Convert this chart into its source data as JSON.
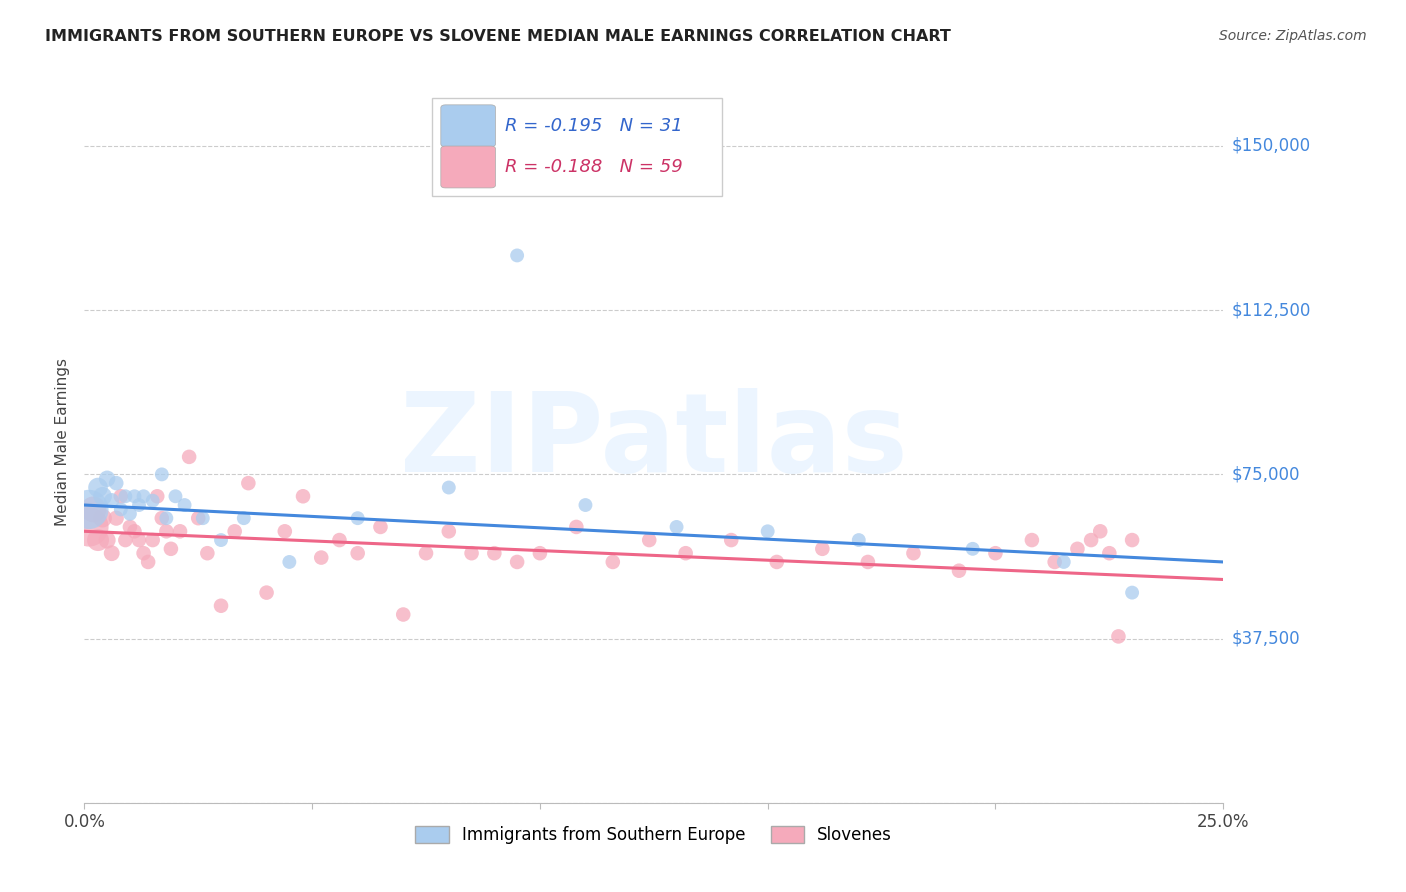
{
  "title": "IMMIGRANTS FROM SOUTHERN EUROPE VS SLOVENE MEDIAN MALE EARNINGS CORRELATION CHART",
  "source": "Source: ZipAtlas.com",
  "ylabel": "Median Male Earnings",
  "xlim": [
    0.0,
    0.25
  ],
  "ylim": [
    0,
    165000
  ],
  "yticks": [
    0,
    37500,
    75000,
    112500,
    150000
  ],
  "ytick_labels": [
    "",
    "$37,500",
    "$75,000",
    "$112,500",
    "$150,000"
  ],
  "blue_R": -0.195,
  "blue_N": 31,
  "pink_R": -0.188,
  "pink_N": 59,
  "blue_color": "#aaccee",
  "pink_color": "#f5aabb",
  "blue_line_color": "#4488dd",
  "pink_line_color": "#ee6688",
  "legend_label_blue": "Immigrants from Southern Europe",
  "legend_label_pink": "Slovenes",
  "watermark": "ZIPatlas",
  "blue_x": [
    0.001,
    0.003,
    0.004,
    0.005,
    0.006,
    0.007,
    0.008,
    0.009,
    0.01,
    0.011,
    0.012,
    0.013,
    0.015,
    0.017,
    0.018,
    0.02,
    0.022,
    0.026,
    0.03,
    0.035,
    0.045,
    0.06,
    0.08,
    0.095,
    0.11,
    0.13,
    0.15,
    0.17,
    0.195,
    0.215,
    0.23
  ],
  "blue_y": [
    67000,
    72000,
    70000,
    74000,
    69000,
    73000,
    67000,
    70000,
    66000,
    70000,
    68000,
    70000,
    69000,
    75000,
    65000,
    70000,
    68000,
    65000,
    60000,
    65000,
    55000,
    65000,
    72000,
    125000,
    68000,
    63000,
    62000,
    60000,
    58000,
    55000,
    48000
  ],
  "blue_sizes": [
    800,
    200,
    180,
    140,
    120,
    110,
    100,
    100,
    100,
    100,
    100,
    100,
    100,
    100,
    100,
    100,
    100,
    100,
    100,
    100,
    100,
    100,
    100,
    100,
    100,
    100,
    100,
    100,
    100,
    100,
    100
  ],
  "pink_x": [
    0.001,
    0.002,
    0.003,
    0.004,
    0.005,
    0.006,
    0.007,
    0.008,
    0.009,
    0.01,
    0.011,
    0.012,
    0.013,
    0.014,
    0.015,
    0.016,
    0.017,
    0.018,
    0.019,
    0.021,
    0.023,
    0.025,
    0.027,
    0.03,
    0.033,
    0.036,
    0.04,
    0.044,
    0.048,
    0.052,
    0.056,
    0.06,
    0.065,
    0.07,
    0.075,
    0.08,
    0.085,
    0.09,
    0.095,
    0.1,
    0.108,
    0.116,
    0.124,
    0.132,
    0.142,
    0.152,
    0.162,
    0.172,
    0.182,
    0.192,
    0.2,
    0.208,
    0.213,
    0.218,
    0.221,
    0.223,
    0.225,
    0.227,
    0.23
  ],
  "pink_y": [
    63000,
    67000,
    60000,
    65000,
    60000,
    57000,
    65000,
    70000,
    60000,
    63000,
    62000,
    60000,
    57000,
    55000,
    60000,
    70000,
    65000,
    62000,
    58000,
    62000,
    79000,
    65000,
    57000,
    45000,
    62000,
    73000,
    48000,
    62000,
    70000,
    56000,
    60000,
    57000,
    63000,
    43000,
    57000,
    62000,
    57000,
    57000,
    55000,
    57000,
    63000,
    55000,
    60000,
    57000,
    60000,
    55000,
    58000,
    55000,
    57000,
    53000,
    57000,
    60000,
    55000,
    58000,
    60000,
    62000,
    57000,
    38000,
    60000
  ],
  "pink_sizes": [
    800,
    350,
    250,
    180,
    150,
    130,
    120,
    110,
    110,
    110,
    110,
    110,
    110,
    110,
    110,
    110,
    110,
    110,
    110,
    110,
    110,
    110,
    110,
    110,
    110,
    110,
    110,
    110,
    110,
    110,
    110,
    110,
    110,
    110,
    110,
    110,
    110,
    110,
    110,
    110,
    110,
    110,
    110,
    110,
    110,
    110,
    110,
    110,
    110,
    110,
    110,
    110,
    110,
    110,
    110,
    110,
    110,
    110,
    110
  ],
  "blue_line_y0": 68000,
  "blue_line_y1": 55000,
  "pink_line_y0": 62000,
  "pink_line_y1": 51000
}
